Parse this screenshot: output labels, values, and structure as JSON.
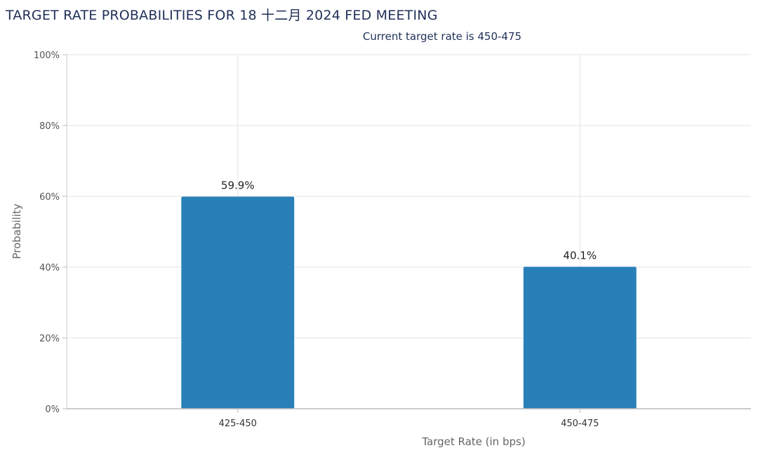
{
  "chart_data": {
    "type": "bar",
    "title": "TARGET RATE PROBABILITIES FOR 18 十二月 2024 FED MEETING",
    "subtitle": "Current target rate is 450-475",
    "categories": [
      "425-450",
      "450-475"
    ],
    "values": [
      59.9,
      40.1
    ],
    "data_labels": [
      "59.9%",
      "40.1%"
    ],
    "xlabel": "Target Rate (in bps)",
    "ylabel": "Probability",
    "ylim": [
      0,
      100
    ],
    "y_ticks": [
      "0%",
      "20%",
      "40%",
      "60%",
      "80%",
      "100%"
    ],
    "grid": true,
    "bar_color": "#2980b9"
  }
}
